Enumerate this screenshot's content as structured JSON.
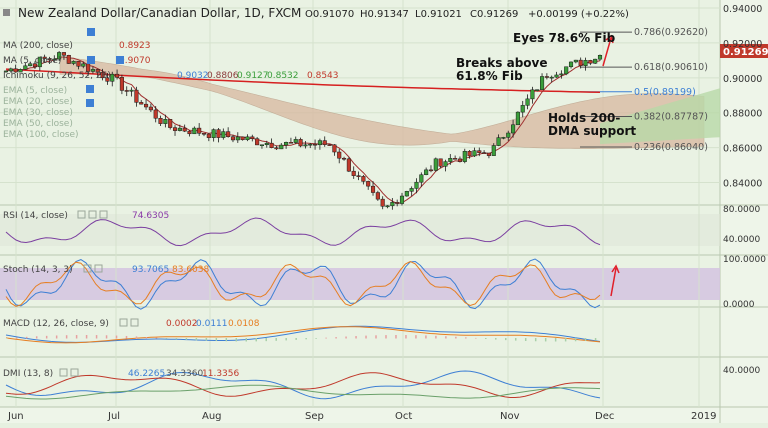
{
  "header": {
    "title": "New Zealand Dollar/Canadian Dollar, 1D, FXCM",
    "open": "O0.91070",
    "high": "H0.91347",
    "low": "L0.91021",
    "close": "C0.91269",
    "change": "+0.00199 (+0.22%)"
  },
  "overlays": {
    "ma200": {
      "label": "MA (200, close)",
      "value": "0.8923"
    },
    "ma": {
      "label": "MA (5, close)",
      "value": "0.9070"
    },
    "ichimoku": {
      "label": "Ichimoku (9, 26, 52, 26)",
      "v1": "0.9032",
      "v2": "0.8806",
      "v3": "0.9127",
      "v4": "0.8532",
      "v5": "0.8543"
    },
    "hidden": [
      "EMA (5, close)",
      "EMA (20, close)",
      "EMA (30, close)",
      "EMA (50, close)",
      "EMA (100, close)"
    ]
  },
  "price": {
    "last": "0.91269",
    "ticks": [
      {
        "v": 0.94,
        "t": "0.94000"
      },
      {
        "v": 0.92,
        "t": "0.92000"
      },
      {
        "v": 0.9,
        "t": "0.90000"
      },
      {
        "v": 0.88,
        "t": "0.88000"
      },
      {
        "v": 0.86,
        "t": "0.86000"
      },
      {
        "v": 0.84,
        "t": "0.84000"
      }
    ],
    "fib": [
      {
        "v": 0.9262,
        "t": "0.786(0.92620)",
        "color": "#555555"
      },
      {
        "v": 0.9061,
        "t": "0.618(0.90610)",
        "color": "#555555"
      },
      {
        "v": 0.89199,
        "t": "0.5(0.89199)",
        "color": "#3d7fd4"
      },
      {
        "v": 0.87787,
        "t": "0.382(0.87787)",
        "color": "#555555"
      },
      {
        "v": 0.8604,
        "t": "0.236(0.86040)",
        "color": "#555555"
      }
    ]
  },
  "annotations": {
    "eyes": "Eyes 78.6% Fib",
    "breaks1": "Breaks above",
    "breaks2": "61.8% Fib",
    "holds1": "Holds 200-",
    "holds2": "DMA support"
  },
  "rsi": {
    "label": "RSI (14, close)",
    "value": "74.6305",
    "ticks": [
      {
        "v": 80,
        "t": "80.0000"
      },
      {
        "v": 40,
        "t": "40.0000"
      }
    ]
  },
  "stoch": {
    "label": "Stoch (14, 3, 3)",
    "k": "93.7065",
    "d": "83.6038",
    "ticks": [
      {
        "v": 100,
        "t": "100.0000"
      },
      {
        "v": 0,
        "t": "0.0000"
      }
    ]
  },
  "macd": {
    "label": "MACD (12, 26, close, 9)",
    "hist": "0.0002",
    "macd": "0.0111",
    "signal": "0.0108"
  },
  "dmi": {
    "label": "DMI (13, 8)",
    "plus": "46.2265",
    "minus": "34.3360",
    "adx": "11.3356",
    "ticks": [
      {
        "v": 40,
        "t": "40.0000"
      }
    ]
  },
  "xaxis": [
    "Jun",
    "Jul",
    "Aug",
    "Sep",
    "Oct",
    "Nov",
    "Dec",
    "2019"
  ],
  "colors": {
    "up": "#3a9e3a",
    "down": "#c0392b",
    "ma200": "#d62020",
    "cloud": "#c9a48a",
    "fib_blue": "#3d7fd4"
  },
  "chart_data": {
    "type": "candlestick",
    "x": [
      "Jun",
      "Jul",
      "Aug",
      "Sep",
      "Oct",
      "Nov",
      "Dec"
    ],
    "price_anchors": [
      0.904,
      0.913,
      0.899,
      0.872,
      0.867,
      0.862,
      0.862,
      0.824,
      0.852,
      0.858,
      0.902,
      0.913
    ],
    "ylim": [
      0.83,
      0.94
    ]
  }
}
